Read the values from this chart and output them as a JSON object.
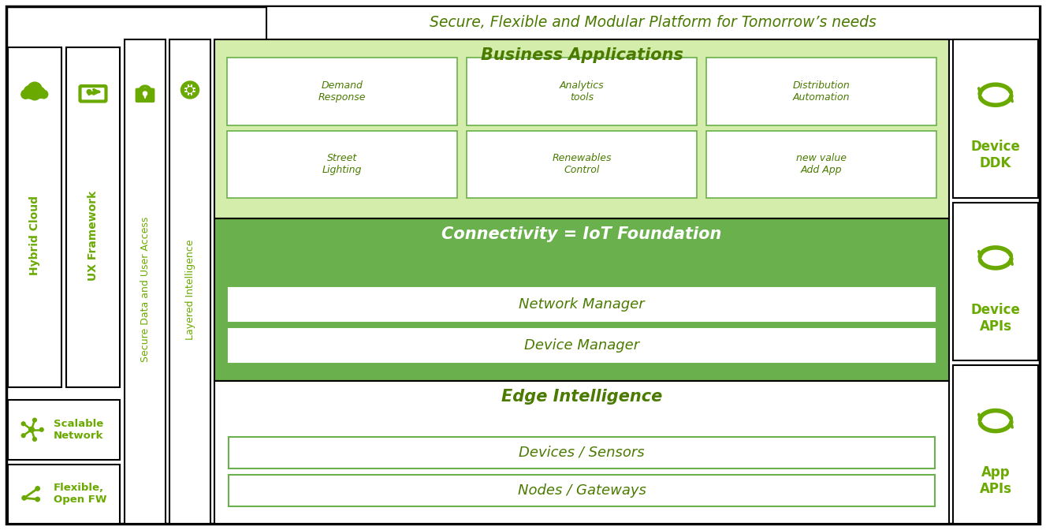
{
  "colors": {
    "dark_green": "#6aaa00",
    "medium_green": "#7bc200",
    "light_green": "#e8f5c8",
    "white": "#ffffff",
    "black": "#000000",
    "text_green": "#4a7a00",
    "conn_green": "#6ab04c",
    "ba_green": "#d4edaa"
  },
  "title": "Secure, Flexible and Modular Platform for Tomorrow’s needs",
  "ba_row1": [
    "Street\nLighting",
    "Renewables\nControl",
    "new value\nAdd App"
  ],
  "ba_row2": [
    "Demand\nResponse",
    "Analytics\ntools",
    "Distribution\nAutomation"
  ],
  "conn_boxes": [
    "Device Manager",
    "Network Manager"
  ],
  "edge_boxes": [
    "Nodes / Gateways",
    "Devices / Sensors"
  ],
  "right_labels": [
    "App\nAPIs",
    "Device\nAPIs",
    "Device\nDDK"
  ]
}
